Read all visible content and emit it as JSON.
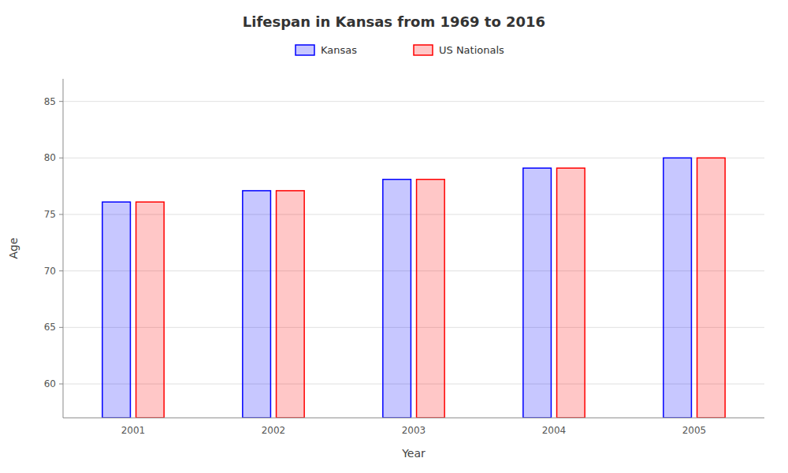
{
  "chart_data": {
    "type": "bar",
    "title": "Lifespan in Kansas from 1969 to 2016",
    "xlabel": "Year",
    "ylabel": "Age",
    "categories": [
      "2001",
      "2002",
      "2003",
      "2004",
      "2005"
    ],
    "series": [
      {
        "name": "Kansas",
        "color": "#0000ff",
        "values": [
          76.1,
          77.1,
          78.1,
          79.1,
          80.0
        ]
      },
      {
        "name": "US Nationals",
        "color": "#ff0000",
        "values": [
          76.1,
          77.1,
          78.1,
          79.1,
          80.0
        ]
      }
    ],
    "ylim": [
      57,
      87
    ],
    "yticks": [
      60,
      65,
      70,
      75,
      80,
      85
    ],
    "grid": true,
    "legend": "top"
  }
}
